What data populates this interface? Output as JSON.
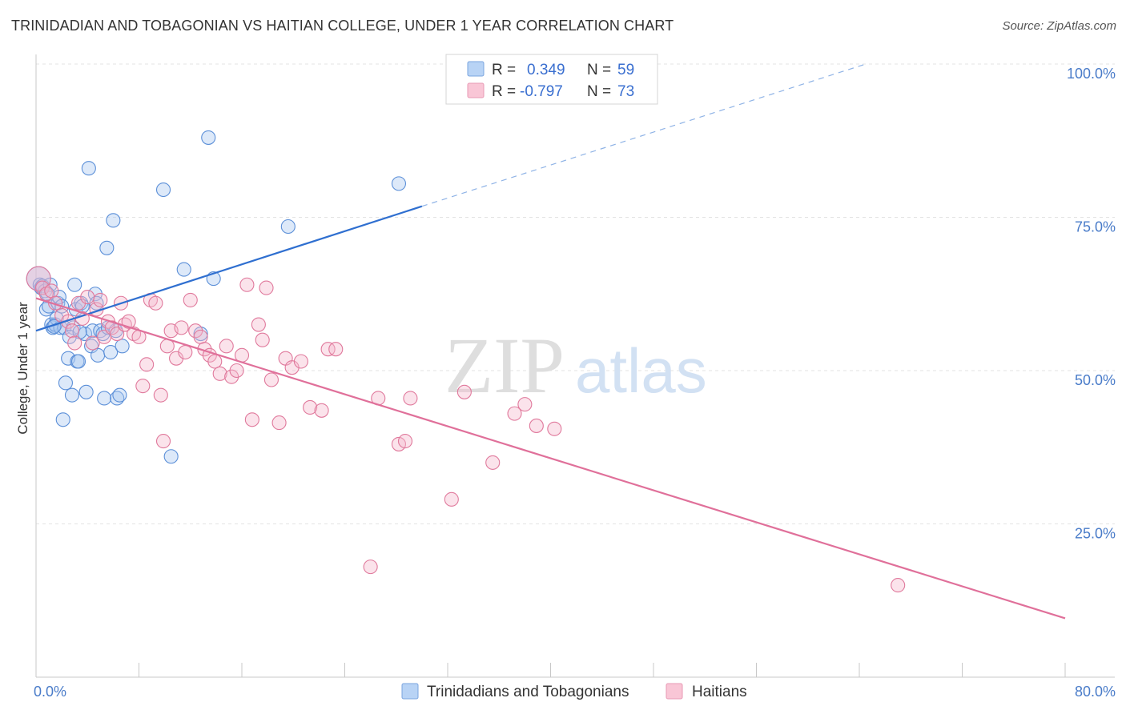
{
  "title": "TRINIDADIAN AND TOBAGONIAN VS HAITIAN COLLEGE, UNDER 1 YEAR CORRELATION CHART",
  "source": "Source: ZipAtlas.com",
  "watermark": {
    "zip": "ZIP",
    "atlas": "atlas"
  },
  "colors": {
    "blue_fill": "#a9c8f0",
    "blue_stroke": "#5b8fd8",
    "blue_line": "#2f6fd0",
    "pink_fill": "#f5b8cc",
    "pink_stroke": "#e0799c",
    "pink_line": "#e0709a",
    "grid": "#e3e3e3",
    "tick_text": "#4a7cc9"
  },
  "legend": {
    "rows": [
      {
        "r_label": "R =",
        "r_value": "0.349",
        "n_label": "N =",
        "n_value": "59"
      },
      {
        "r_label": "R =",
        "r_value": "-0.797",
        "n_label": "N =",
        "n_value": "73"
      }
    ]
  },
  "bottom_legend": [
    "Trinidadians and Tobagonians",
    "Haitians"
  ],
  "chart_data": {
    "type": "scatter",
    "title": "TRINIDADIAN AND TOBAGONIAN VS HAITIAN COLLEGE, UNDER 1 YEAR CORRELATION CHART",
    "xlabel": "",
    "ylabel": "College, Under 1 year",
    "xlim": [
      0,
      80
    ],
    "ylim": [
      0,
      105
    ],
    "x_tick_labels": [
      "0.0%",
      "80.0%"
    ],
    "y_ticks": [
      25,
      50,
      75,
      100
    ],
    "y_tick_labels": [
      "25.0%",
      "50.0%",
      "75.0%",
      "100.0%"
    ],
    "grid": true,
    "series": [
      {
        "name": "Trinidadians and Tobagonians",
        "color": "#5b8fd8",
        "R": 0.349,
        "N": 59,
        "trend": {
          "x": [
            0,
            30
          ],
          "y": [
            56.5,
            76.8
          ],
          "dashed_extension": {
            "x": [
              30,
              64.5
            ],
            "y": [
              76.8,
              100
            ]
          }
        },
        "points": [
          [
            0.2,
            65.0
          ],
          [
            0.3,
            64.0
          ],
          [
            0.4,
            63.5
          ],
          [
            0.5,
            63.8
          ],
          [
            0.7,
            63.0
          ],
          [
            0.8,
            60.0
          ],
          [
            1.0,
            60.5
          ],
          [
            1.2,
            57.5
          ],
          [
            1.3,
            57.0
          ],
          [
            1.5,
            57.5
          ],
          [
            1.6,
            58.5
          ],
          [
            1.7,
            61.0
          ],
          [
            1.8,
            62.0
          ],
          [
            1.9,
            57.0
          ],
          [
            2.0,
            60.5
          ],
          [
            2.1,
            42.0
          ],
          [
            2.2,
            57.0
          ],
          [
            2.3,
            48.0
          ],
          [
            2.5,
            52.0
          ],
          [
            2.8,
            46.0
          ],
          [
            2.9,
            57.0
          ],
          [
            3.0,
            64.0
          ],
          [
            3.1,
            60.0
          ],
          [
            3.2,
            51.5
          ],
          [
            3.3,
            51.5
          ],
          [
            3.5,
            61.0
          ],
          [
            3.6,
            60.5
          ],
          [
            3.8,
            56.0
          ],
          [
            3.9,
            46.5
          ],
          [
            4.1,
            83.0
          ],
          [
            4.3,
            54.0
          ],
          [
            4.4,
            56.5
          ],
          [
            4.6,
            62.5
          ],
          [
            4.7,
            61.0
          ],
          [
            4.8,
            52.5
          ],
          [
            5.0,
            56.5
          ],
          [
            5.2,
            56.0
          ],
          [
            5.3,
            45.5
          ],
          [
            5.5,
            70.0
          ],
          [
            5.6,
            57.0
          ],
          [
            5.8,
            53.0
          ],
          [
            6.0,
            74.5
          ],
          [
            6.2,
            56.5
          ],
          [
            6.3,
            45.5
          ],
          [
            6.5,
            46.0
          ],
          [
            6.7,
            54.0
          ],
          [
            9.9,
            79.5
          ],
          [
            10.5,
            36.0
          ],
          [
            11.5,
            66.5
          ],
          [
            12.8,
            56.0
          ],
          [
            13.4,
            88.0
          ],
          [
            13.8,
            65.0
          ],
          [
            19.6,
            73.5
          ],
          [
            28.2,
            80.5
          ],
          [
            1.1,
            64.0
          ],
          [
            0.9,
            62.5
          ],
          [
            1.4,
            57.2
          ],
          [
            2.6,
            55.5
          ],
          [
            3.4,
            56.3
          ]
        ]
      },
      {
        "name": "Haitians",
        "color": "#e0799c",
        "R": -0.797,
        "N": 73,
        "trend": {
          "x": [
            0,
            80
          ],
          "y": [
            61.8,
            9.6
          ]
        },
        "points": [
          [
            0.2,
            65.0
          ],
          [
            0.5,
            63.5
          ],
          [
            0.8,
            62.5
          ],
          [
            1.2,
            63.0
          ],
          [
            1.5,
            61.0
          ],
          [
            2.0,
            59.0
          ],
          [
            2.5,
            58.0
          ],
          [
            2.8,
            56.5
          ],
          [
            3.0,
            54.5
          ],
          [
            3.3,
            61.0
          ],
          [
            3.6,
            58.5
          ],
          [
            4.0,
            62.0
          ],
          [
            4.4,
            54.5
          ],
          [
            4.7,
            60.0
          ],
          [
            5.0,
            61.5
          ],
          [
            5.3,
            55.5
          ],
          [
            5.6,
            58.0
          ],
          [
            5.9,
            57.0
          ],
          [
            6.3,
            56.0
          ],
          [
            6.6,
            61.0
          ],
          [
            6.9,
            57.5
          ],
          [
            7.2,
            58.0
          ],
          [
            7.6,
            56.0
          ],
          [
            8.0,
            55.5
          ],
          [
            8.3,
            47.5
          ],
          [
            8.6,
            51.0
          ],
          [
            8.9,
            61.5
          ],
          [
            9.3,
            61.0
          ],
          [
            9.7,
            46.0
          ],
          [
            9.9,
            38.5
          ],
          [
            10.2,
            54.0
          ],
          [
            10.5,
            56.5
          ],
          [
            10.9,
            52.0
          ],
          [
            11.3,
            57.0
          ],
          [
            11.6,
            53.0
          ],
          [
            12.0,
            61.5
          ],
          [
            12.4,
            56.5
          ],
          [
            12.8,
            55.5
          ],
          [
            13.1,
            53.5
          ],
          [
            13.5,
            52.5
          ],
          [
            13.9,
            51.5
          ],
          [
            14.3,
            49.5
          ],
          [
            14.8,
            54.0
          ],
          [
            15.2,
            49.0
          ],
          [
            15.6,
            50.0
          ],
          [
            16.0,
            52.5
          ],
          [
            16.4,
            64.0
          ],
          [
            16.8,
            42.0
          ],
          [
            17.3,
            57.5
          ],
          [
            17.6,
            55.0
          ],
          [
            17.9,
            63.5
          ],
          [
            18.3,
            48.5
          ],
          [
            18.9,
            41.5
          ],
          [
            19.4,
            52.0
          ],
          [
            19.9,
            50.5
          ],
          [
            20.6,
            51.5
          ],
          [
            21.3,
            44.0
          ],
          [
            22.2,
            43.5
          ],
          [
            22.7,
            53.5
          ],
          [
            23.3,
            53.5
          ],
          [
            26.6,
            45.5
          ],
          [
            28.2,
            38.0
          ],
          [
            28.7,
            38.5
          ],
          [
            29.1,
            45.5
          ],
          [
            32.3,
            29.0
          ],
          [
            33.3,
            46.5
          ],
          [
            35.5,
            35.0
          ],
          [
            37.2,
            43.0
          ],
          [
            38.0,
            44.5
          ],
          [
            38.9,
            41.0
          ],
          [
            40.3,
            40.5
          ],
          [
            26.0,
            18.0
          ],
          [
            67.0,
            15.0
          ]
        ]
      }
    ]
  }
}
